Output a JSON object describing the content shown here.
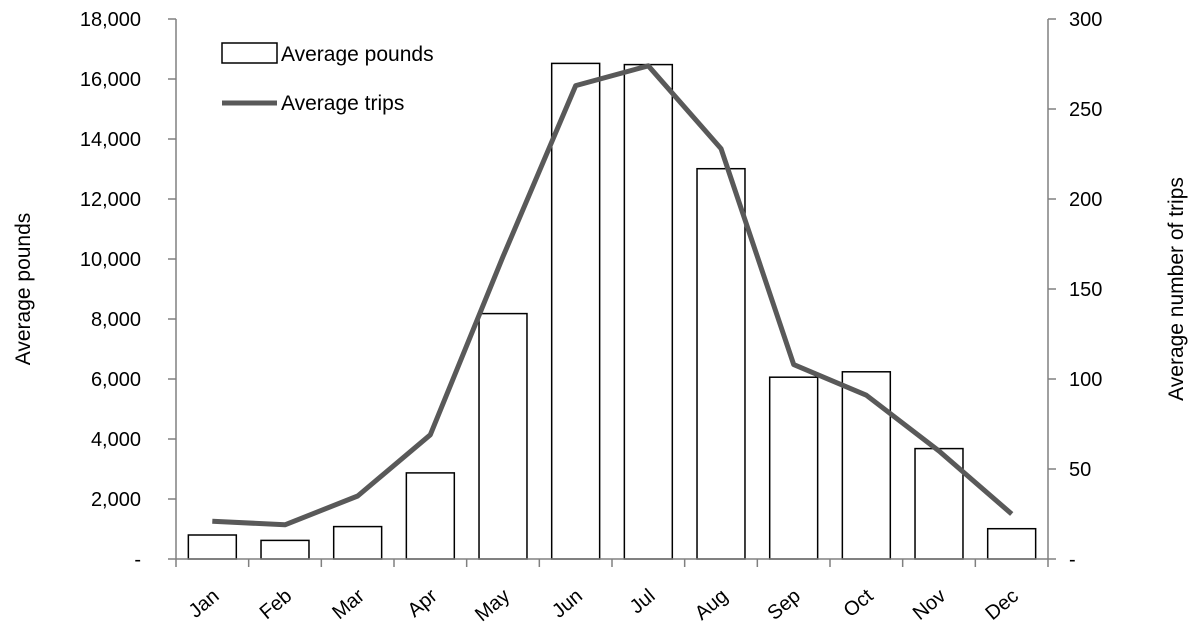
{
  "chart_data": {
    "type": "bar",
    "categories": [
      "Jan",
      "Feb",
      "Mar",
      "Apr",
      "May",
      "Jun",
      "Jul",
      "Aug",
      "Sep",
      "Oct",
      "Nov",
      "Dec"
    ],
    "series": [
      {
        "name": "Average pounds",
        "type": "bar",
        "axis": "left",
        "values": [
          800,
          620,
          1080,
          2870,
          8180,
          16520,
          16480,
          13010,
          6060,
          6240,
          3680,
          1010
        ]
      },
      {
        "name": "Average trips",
        "type": "line",
        "axis": "right",
        "values": [
          21,
          19,
          35,
          69,
          168,
          263,
          274,
          228,
          108,
          91,
          60,
          25
        ]
      }
    ],
    "ylabel": "Average pounds",
    "y2label": "Average number of trips",
    "ylim": [
      0,
      18000
    ],
    "y2lim": [
      0,
      300
    ],
    "yticks": [
      "-",
      "2,000",
      "4,000",
      "6,000",
      "8,000",
      "10,000",
      "12,000",
      "14,000",
      "16,000",
      "18,000"
    ],
    "y2ticks": [
      "-",
      "50",
      "100",
      "150",
      "200",
      "250",
      "300"
    ],
    "legend_position": "top-left",
    "grid": false
  },
  "colors": {
    "bar_fill": "#ffffff",
    "bar_stroke": "#000000",
    "line": "#595959",
    "axis": "#808080"
  }
}
